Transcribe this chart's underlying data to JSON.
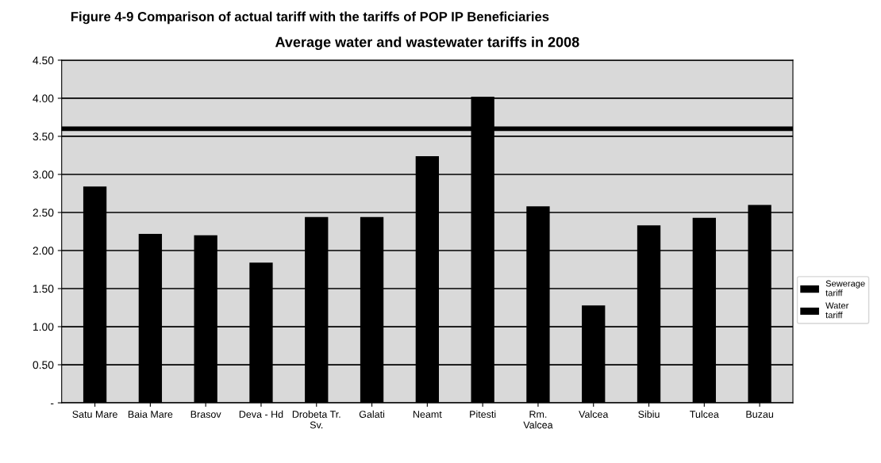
{
  "chart_data": {
    "type": "bar",
    "title": "Average water and wastewater tariffs in 2008",
    "categories": [
      "Satu Mare",
      "Baia Mare",
      "Brasov",
      "Deva - Hd",
      "Drobeta Tr.\nSv.",
      "Galati",
      "Neamt",
      "Pitesti",
      "Rm.\nValcea",
      "Valcea",
      "Sibiu",
      "Tulcea",
      "Buzau"
    ],
    "series": [
      {
        "name": "Water\ntariff",
        "color": "#000000",
        "values": [
          2.84,
          2.22,
          2.2,
          1.84,
          2.44,
          2.44,
          3.24,
          4.02,
          2.58,
          1.28,
          2.33,
          2.43,
          2.6
        ]
      },
      {
        "name": "Sewerage\ntariff",
        "color": "#000000",
        "values": [
          null,
          null,
          null,
          null,
          null,
          null,
          null,
          null,
          null,
          null,
          null,
          null,
          null
        ]
      }
    ],
    "ylim": [
      0,
      4.5
    ],
    "yticks": [
      {
        "value": 0,
        "label": "-"
      },
      {
        "value": 0.5,
        "label": "0.50"
      },
      {
        "value": 1,
        "label": "1.00"
      },
      {
        "value": 1.5,
        "label": "1.50"
      },
      {
        "value": 2,
        "label": "2.00"
      },
      {
        "value": 2.5,
        "label": "2.50"
      },
      {
        "value": 3,
        "label": "3.00"
      },
      {
        "value": 3.5,
        "label": "3.50"
      },
      {
        "value": 4,
        "label": "4.00"
      },
      {
        "value": 4.5,
        "label": "4.50"
      }
    ],
    "ref_lines": [
      {
        "axis": "y",
        "value": 3.6,
        "color": "#000000"
      }
    ],
    "grid": "y",
    "legend": "right",
    "annotations": [
      "Figure 4-9 Comparison of actual tariff with the tariffs of POP IP Beneficiaries"
    ]
  }
}
